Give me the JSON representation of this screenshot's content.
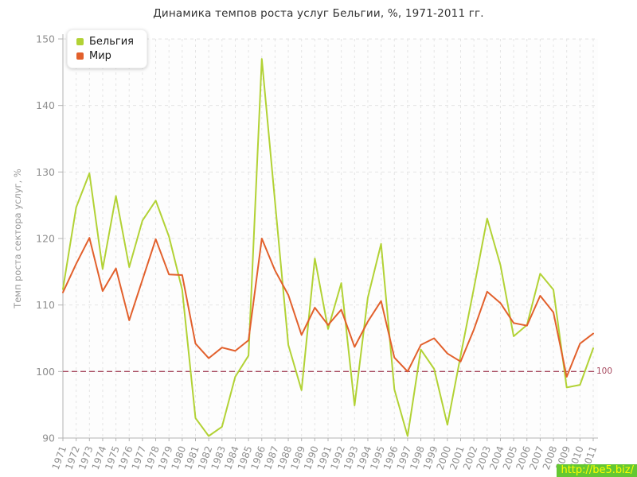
{
  "title": "Динамика темпов роста услуг Бельгии, %, 1971-2011 гг.",
  "y_axis_title": "Темп роста сектора услуг, %",
  "reference_line_label": "100",
  "watermark": "http://be5.biz/",
  "legend": {
    "items": [
      {
        "label": "Бельгия",
        "color": "#b2d235"
      },
      {
        "label": "Мир",
        "color": "#e2602c"
      }
    ]
  },
  "style": {
    "axis_color": "#b3b3b3",
    "grid_color": "#e4e4e4",
    "tick_label_color": "#8f8f8f",
    "reference_line_color": "#a6485e",
    "plot_background": "#fdfdfd"
  },
  "chart_data": {
    "type": "line",
    "title": "Динамика темпов роста услуг Бельгии, %, 1971-2011 гг.",
    "xlabel": "",
    "ylabel": "Темп роста сектора услуг, %",
    "ylim": [
      90,
      150
    ],
    "yticks": [
      90,
      100,
      110,
      120,
      130,
      140,
      150
    ],
    "grid": true,
    "legend_position": "top-left",
    "reference_line": 100,
    "x": [
      1971,
      1972,
      1973,
      1974,
      1975,
      1976,
      1977,
      1978,
      1979,
      1980,
      1981,
      1982,
      1983,
      1984,
      1985,
      1986,
      1987,
      1988,
      1989,
      1990,
      1991,
      1992,
      1993,
      1994,
      1995,
      1996,
      1997,
      1998,
      1999,
      2000,
      2001,
      2002,
      2003,
      2004,
      2005,
      2006,
      2007,
      2008,
      2009,
      2010,
      2011
    ],
    "series": [
      {
        "name": "Бельгия",
        "color": "#b2d235",
        "values": [
          112.4,
          124.7,
          129.8,
          115.4,
          126.4,
          115.7,
          122.7,
          125.7,
          120.3,
          112.3,
          93.0,
          90.3,
          91.7,
          99.2,
          102.4,
          147.0,
          125.5,
          104.0,
          97.2,
          117.0,
          106.4,
          113.3,
          94.9,
          111.1,
          119.2,
          97.3,
          90.3,
          103.3,
          100.4,
          92.0,
          102.4,
          112.5,
          123.0,
          116.0,
          105.3,
          107.0,
          114.7,
          112.3,
          97.6,
          98.0,
          103.5
        ]
      },
      {
        "name": "Мир",
        "color": "#e2602c",
        "values": [
          111.9,
          116.2,
          120.1,
          112.1,
          115.5,
          107.7,
          113.8,
          119.9,
          114.6,
          114.5,
          104.2,
          102.0,
          103.6,
          103.1,
          104.7,
          120.0,
          115.2,
          111.5,
          105.5,
          109.6,
          107.0,
          109.3,
          103.7,
          107.5,
          110.6,
          102.1,
          100.0,
          104.0,
          105.0,
          102.7,
          101.5,
          106.3,
          112.0,
          110.3,
          107.3,
          106.9,
          111.4,
          108.9,
          99.2,
          104.2,
          105.7
        ]
      }
    ]
  }
}
